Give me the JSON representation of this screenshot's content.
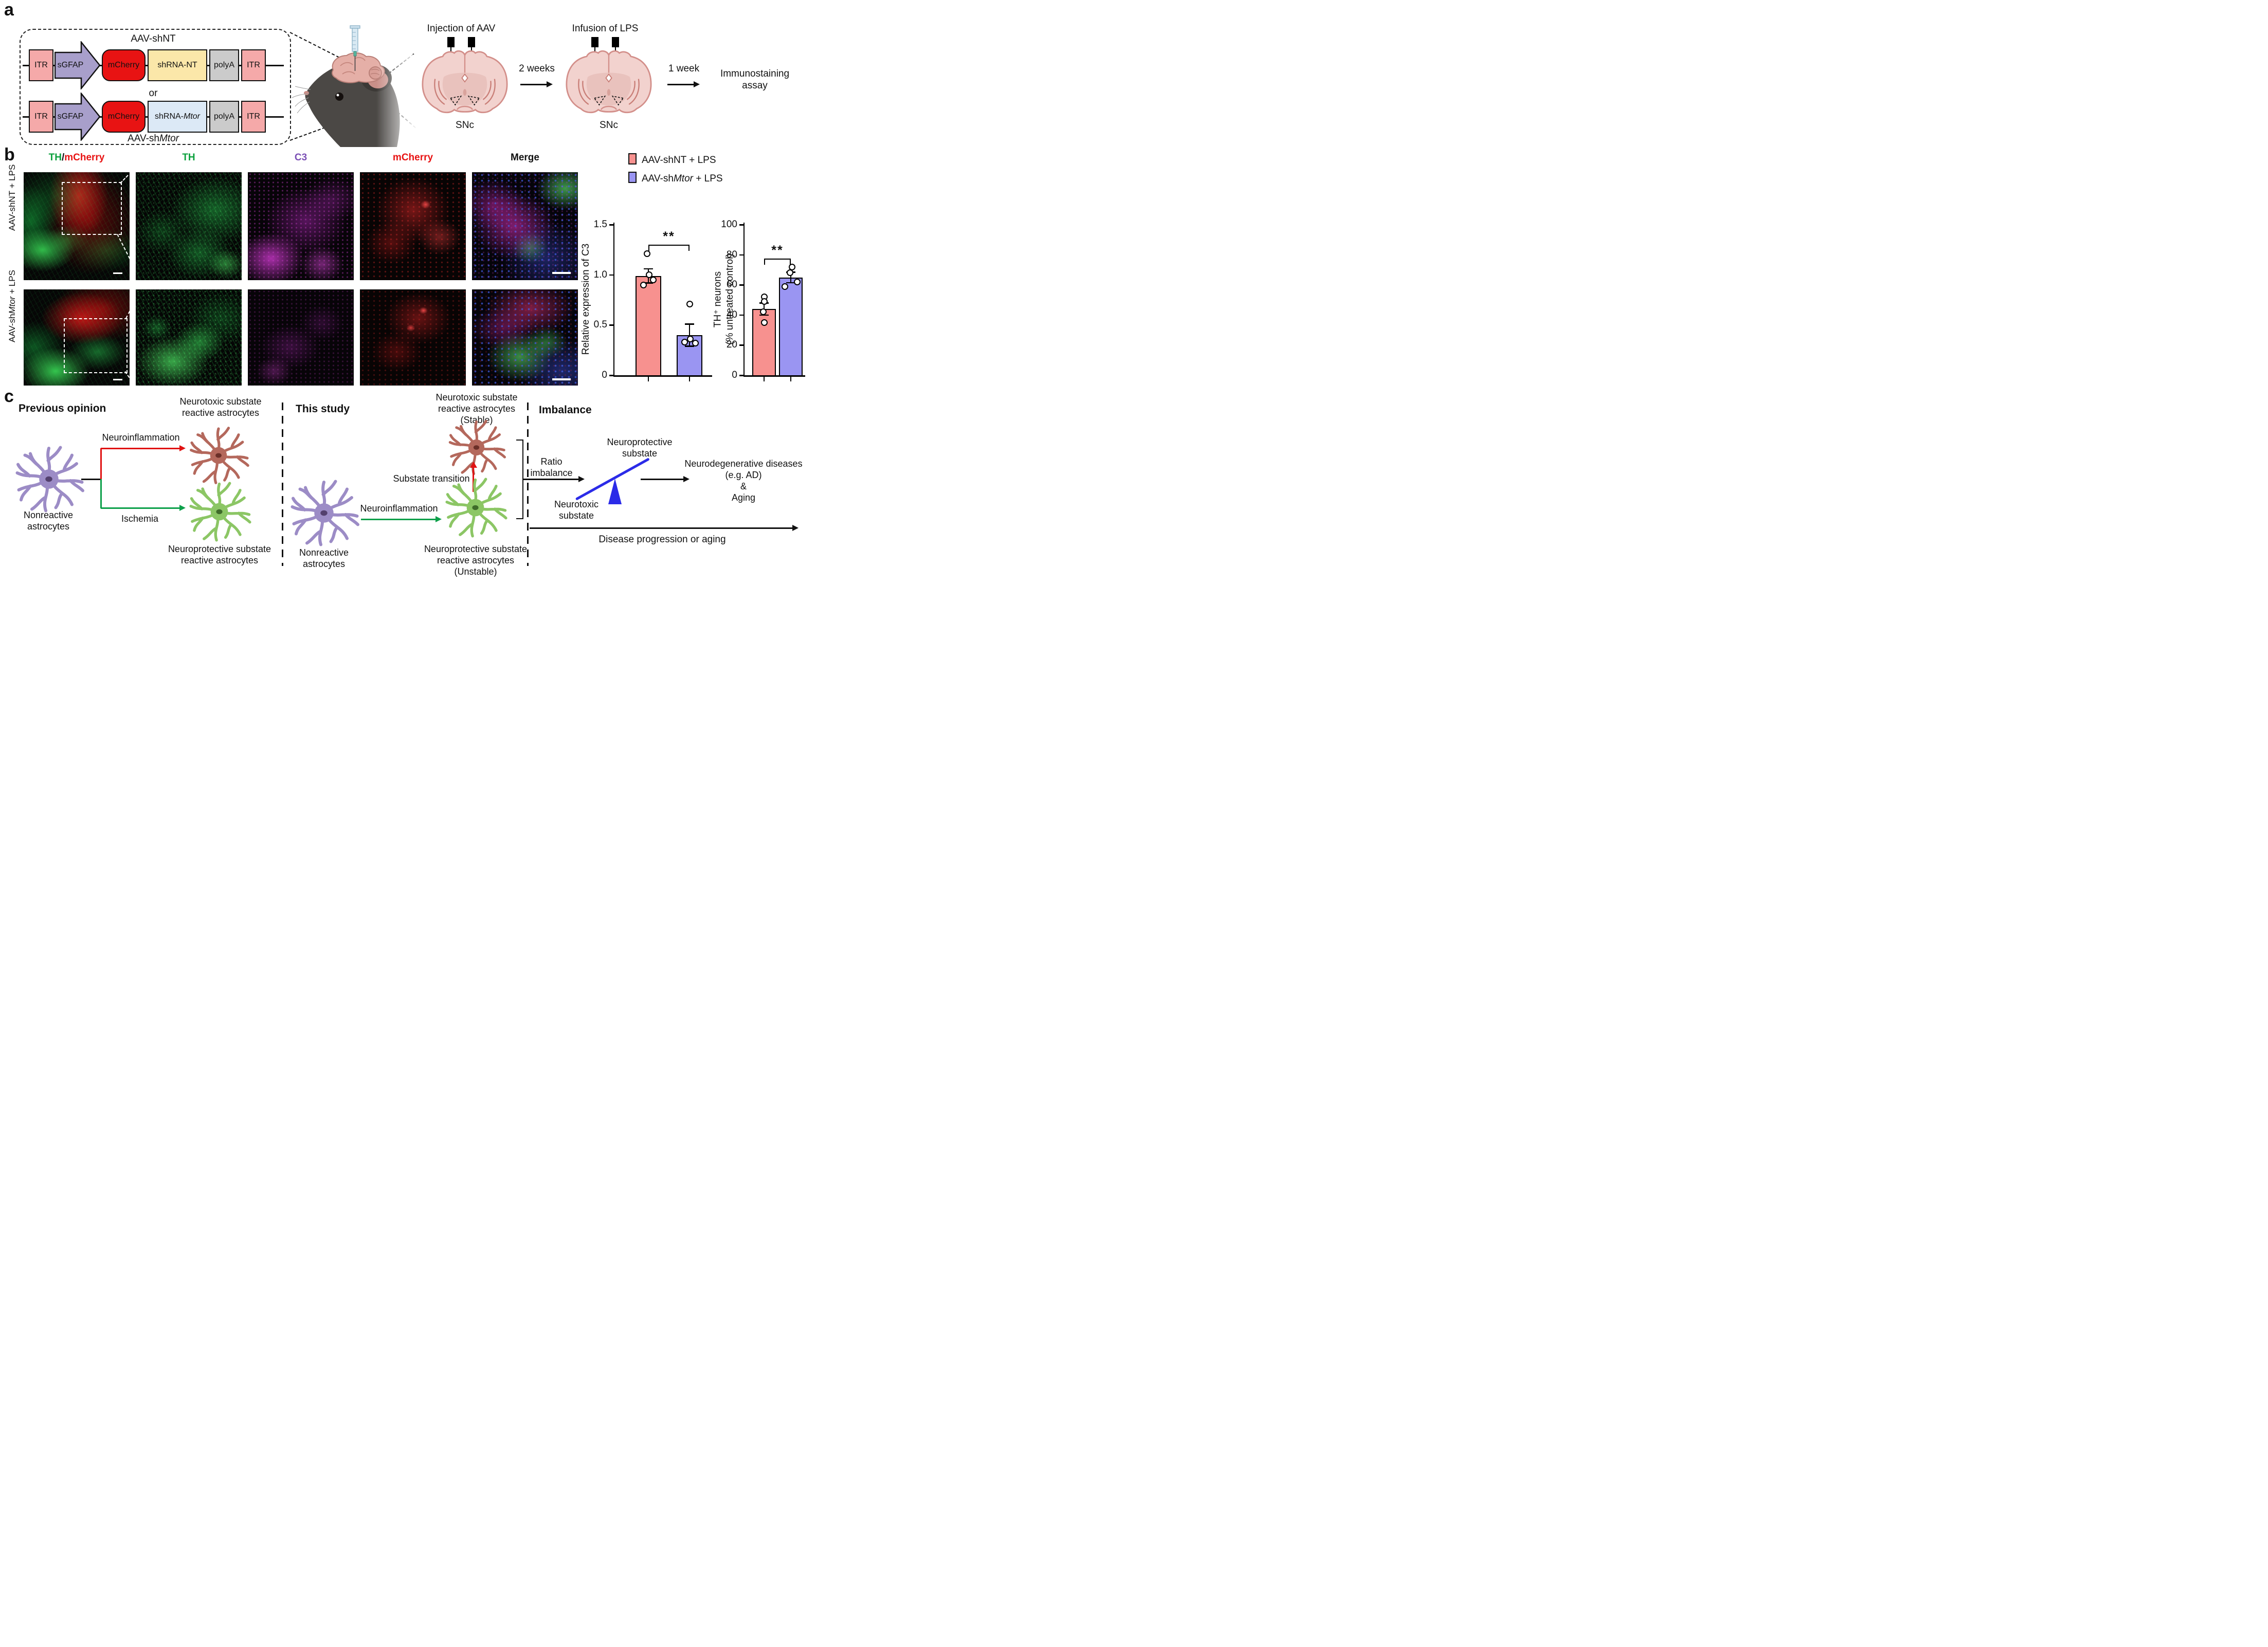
{
  "a": {
    "panel_label": "a",
    "shnt_title": "AAV-shNT",
    "or": "or",
    "shmtor_title_prefix": "AAV-sh",
    "shmtor_title_italic": "Mtor",
    "box_itr": "ITR",
    "box_sgfap": "sGFAP",
    "box_mcherry": "mCherry",
    "box_shrna_nt": "shRNA-NT",
    "box_shrna_mtor_prefix": "shRNA-",
    "box_shrna_mtor_italic": "Mtor",
    "box_polya": "polyA",
    "injection_label": "Injection of AAV",
    "infusion_label": "Infusion of LPS",
    "snc": "SNc",
    "two_weeks": "2 weeks",
    "one_week": "1 week",
    "assay_l1": "Immunostaining",
    "assay_l2": "assay"
  },
  "b": {
    "panel_label": "b",
    "header_th_part": "TH",
    "header_slash": "/",
    "header_mcherry_part": "mCherry",
    "header_th": "TH",
    "header_c3": "C3",
    "header_mcherry": "mCherry",
    "header_merge": "Merge",
    "row1_label": "AAV-shNT + LPS",
    "row2_prefix": "AAV-sh",
    "row2_italic": "Mtor",
    "row2_suffix": " + LPS",
    "legend1_label": "AAV-shNT + LPS",
    "legend2_prefix": "AAV-sh",
    "legend2_italic": "Mtor",
    "legend2_suffix": " + LPS",
    "colors": {
      "th_green": "#0BA03C",
      "c3_purple": "#7B4FB5",
      "mcherry_red": "#E81313",
      "legend_pink": "#F7918F",
      "legend_blue": "#9A95F2"
    }
  },
  "chart_data": [
    {
      "type": "bar",
      "ylabel": "Relative expression of C3",
      "categories": [
        "AAV-shNT + LPS",
        "AAV-shMtor + LPS"
      ],
      "values": [
        0.99,
        0.4
      ],
      "errors": [
        0.07,
        0.11
      ],
      "points": [
        [
          1.21,
          1.0,
          0.95,
          0.9
        ],
        [
          0.71,
          0.36,
          0.33,
          0.32
        ]
      ],
      "ylim": [
        0,
        1.5
      ],
      "yticks": [
        0,
        0.5,
        1.0,
        1.5
      ],
      "ytick_labels": [
        "0",
        "0.5",
        "1.0",
        "1.5"
      ],
      "bar_colors": [
        "#F7918F",
        "#9A95F2"
      ],
      "significance": "**",
      "grid": false,
      "legend_position": "top-left-of-charts"
    },
    {
      "type": "bar",
      "ylabel_lines": [
        "TH⁺ neurons",
        "(% untreated control)"
      ],
      "categories": [
        "AAV-shNT + LPS",
        "AAV-shMtor + LPS"
      ],
      "values": [
        44,
        65
      ],
      "errors": [
        4,
        3.5
      ],
      "points": [
        [
          52,
          49,
          42,
          35
        ],
        [
          72,
          68,
          62,
          59
        ]
      ],
      "ylim": [
        0,
        100
      ],
      "yticks": [
        0,
        20,
        40,
        60,
        80,
        100
      ],
      "ytick_labels": [
        "0",
        "20",
        "40",
        "60",
        "80",
        "100"
      ],
      "bar_colors": [
        "#F7918F",
        "#9A95F2"
      ],
      "significance": "**",
      "grid": false
    }
  ],
  "c": {
    "panel_label": "c",
    "h_previous": "Previous opinion",
    "h_study": "This study",
    "h_imbalance": "Imbalance",
    "nonreactive_l1": "Nonreactive",
    "nonreactive_l2": "astrocytes",
    "neurotoxic_l1": "Neurotoxic substate",
    "neurotoxic_l2": "reactive astrocytes",
    "stable": "(Stable)",
    "neuroprotective_l1": "Neuroprotective substate",
    "neuroprotective_l2": "reactive astrocytes",
    "unstable": "(Unstable)",
    "arrow_neuroinflammation": "Neuroinflammation",
    "arrow_ischemia": "Ischemia",
    "substate_transition": "Substate transition",
    "ratio_l1": "Ratio",
    "ratio_l2": "imbalance",
    "seesaw_top_l1": "Neuroprotective",
    "seesaw_top_l2": "substate",
    "seesaw_bottom_l1": "Neurotoxic",
    "seesaw_bottom_l2": "substate",
    "outcome_l1": "Neurodegenerative diseases",
    "outcome_l2": "(e.g. AD)",
    "outcome_l3": "&",
    "outcome_l4": "Aging",
    "bottom_arrow_label": "Disease progression or aging"
  }
}
